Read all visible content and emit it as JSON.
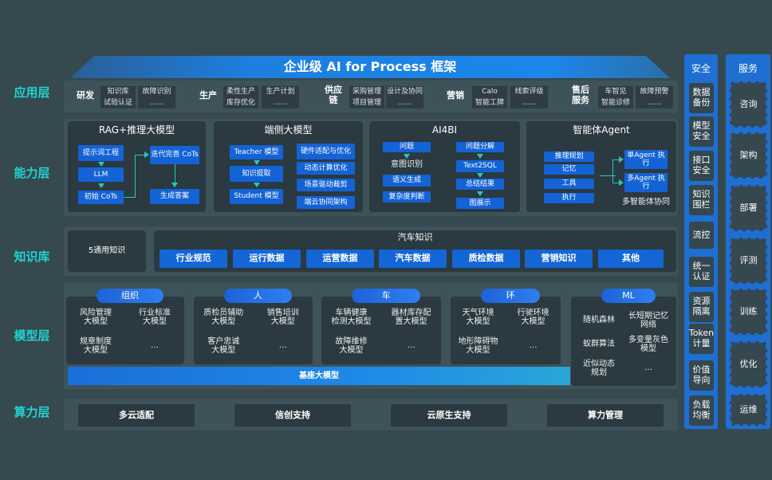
{
  "title": "企业级 AI for Process 框架",
  "layers": [
    "应用层",
    "能力层",
    "知识库",
    "模型层",
    "算力层"
  ],
  "app": {
    "groups": [
      {
        "name": "研发",
        "items": [
          "知识库",
          "试验认证",
          "故障识别",
          "……"
        ]
      },
      {
        "name": "生产",
        "items": [
          "柔性生产",
          "库存优化",
          "生产计划",
          "……"
        ]
      },
      {
        "name": "供应链",
        "items": [
          "采购管理",
          "项目管理",
          "设计及协同",
          "……"
        ]
      },
      {
        "name": "营销",
        "items": [
          "Calo",
          "智能工牌",
          "线索评级",
          "……"
        ]
      },
      {
        "name": "售后服务",
        "items": [
          "车智见",
          "智能诊修",
          "故障预警",
          "……"
        ]
      }
    ]
  },
  "ability": {
    "rag": {
      "title": "RAG+推理大模型",
      "items": [
        "提示词工程",
        "LLM",
        "初始 CoTs",
        "迭代完善 CoTs",
        "生成答案"
      ]
    },
    "edge": {
      "title": "端侧大模型",
      "items": [
        "Teacher 模型",
        "知识提取",
        "Student 模型",
        "硬件适配与优化",
        "动态计算优化",
        "场景驱动裁剪",
        "端云协同架构"
      ]
    },
    "ai4bi": {
      "title": "AI4BI",
      "items": [
        "问题",
        "意图识别",
        "语义生成",
        "复杂度判断",
        "问题分解",
        "Text2SQL",
        "总结结果",
        "图展示"
      ]
    },
    "agent": {
      "title": "智能体Agent",
      "items": [
        "推理规划",
        "记忆",
        "工具",
        "执行",
        "单Agent 执行",
        "多Agent 执行",
        "多智能体协同"
      ]
    }
  },
  "knowledge": {
    "general": "5通用知识",
    "auto_title": "汽车知识",
    "items": [
      "行业规范",
      "运行数据",
      "运营数据",
      "汽车数据",
      "质检数据",
      "营销知识",
      "其他"
    ]
  },
  "model": {
    "groups": [
      {
        "name": "组织",
        "items": [
          "风险管理\n大模型",
          "行业标准\n大模型",
          "规章制度\n大模型",
          "…"
        ]
      },
      {
        "name": "人",
        "items": [
          "质检员辅助\n大模型",
          "销售培训\n大模型",
          "客户忠诚\n大模型",
          "…"
        ]
      },
      {
        "name": "车",
        "items": [
          "车辆健康\n检测大模型",
          "器材库存配\n置大模型",
          "故障维修\n大模型",
          "…"
        ]
      },
      {
        "name": "环",
        "items": [
          "天气环境\n大模型",
          "行驶环境\n大模型",
          "地形障碍物\n大模型",
          "…"
        ]
      },
      {
        "name": "ML",
        "items": [
          "随机森林",
          "长短期记忆\n网络",
          "蚁群算法",
          "多变量灰色\n模型",
          "近似动态\n规划",
          "…"
        ]
      }
    ],
    "base": "基座大模型"
  },
  "compute": [
    "多云适配",
    "信创支持",
    "云原生支持",
    "算力管理"
  ],
  "security": {
    "title": "安全",
    "items": [
      "数据\n备份",
      "模型\n安全",
      "接口\n安全",
      "知识\n围栏",
      "流控",
      "统一\n认证",
      "资源\n隔离",
      "Token\n计量",
      "价值\n导向",
      "负载\n均衡"
    ]
  },
  "service": {
    "title": "服务",
    "items": [
      "咨询",
      "架构",
      "部署",
      "评测",
      "训练",
      "优化",
      "运维"
    ]
  },
  "colors": {
    "background": "#35494f",
    "accent": "#1463d6",
    "layer_label": "#22d3d0",
    "panel": "#2b3940"
  }
}
